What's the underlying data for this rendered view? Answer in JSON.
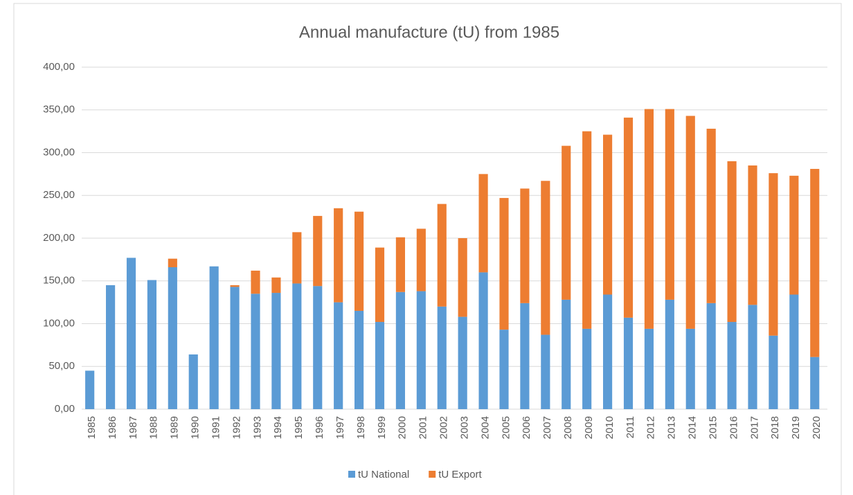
{
  "chart_data": {
    "type": "stacked_bar",
    "title": "Annual manufacture (tU) from 1985",
    "categories": [
      "1985",
      "1986",
      "1987",
      "1988",
      "1989",
      "1990",
      "1991",
      "1992",
      "1993",
      "1994",
      "1995",
      "1996",
      "1997",
      "1998",
      "1999",
      "2000",
      "2001",
      "2002",
      "2003",
      "2004",
      "2005",
      "2006",
      "2007",
      "2008",
      "2009",
      "2010",
      "2011",
      "2012",
      "2013",
      "2014",
      "2015",
      "2016",
      "2017",
      "2018",
      "2019",
      "2020"
    ],
    "series": [
      {
        "name": "tU National",
        "color": "#5b9bd5",
        "values": [
          45,
          145,
          177,
          151,
          166,
          64,
          167,
          143,
          135,
          136,
          147,
          144,
          125,
          115,
          102,
          137,
          138,
          120,
          108,
          160,
          93,
          124,
          87,
          128,
          94,
          134,
          107,
          94,
          128,
          94,
          124,
          102,
          122,
          86,
          134,
          61
        ]
      },
      {
        "name": "tU Export",
        "color": "#ed7d31",
        "values": [
          0,
          0,
          0,
          0,
          10,
          0,
          0,
          2,
          27,
          18,
          60,
          82,
          110,
          116,
          87,
          64,
          73,
          120,
          92,
          115,
          154,
          134,
          180,
          180,
          231,
          187,
          234,
          257,
          223,
          249,
          204,
          188,
          163,
          190,
          139,
          220
        ]
      }
    ],
    "ylim": [
      0,
      400
    ],
    "yticks": [
      {
        "value": 0,
        "label": "0,00"
      },
      {
        "value": 50,
        "label": "50,00"
      },
      {
        "value": 100,
        "label": "100,00"
      },
      {
        "value": 150,
        "label": "150,00"
      },
      {
        "value": 200,
        "label": "200,00"
      },
      {
        "value": 250,
        "label": "250,00"
      },
      {
        "value": 300,
        "label": "300,00"
      },
      {
        "value": 350,
        "label": "350,00"
      },
      {
        "value": 400,
        "label": "400,00"
      }
    ],
    "grid": true,
    "legend": "bottom"
  }
}
